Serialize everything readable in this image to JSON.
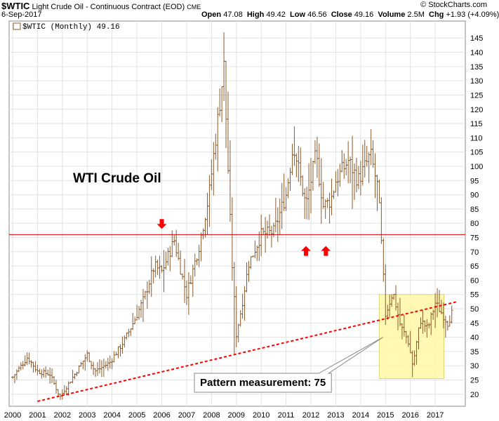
{
  "header": {
    "symbol": "$WTIC",
    "description": "Light Crude Oil - Continuous Contract (EOD)",
    "exchange": "CME",
    "date": "6-Sep-2017",
    "open_label": "Open",
    "open": "47.08",
    "high_label": "High",
    "high": "49.42",
    "low_label": "Low",
    "low": "46.56",
    "close_label": "Close",
    "close": "49.16",
    "volume_label": "Volume",
    "volume": "2.5M",
    "change_label": "Chg",
    "change": "+1.93 (+4.09%)",
    "brand": "© StockCharts.com"
  },
  "colors": {
    "bars": "#8b5a2b",
    "horizontal_line": "#cc0000",
    "trendline": "#ff0000",
    "arrows": "#ff0000",
    "highlight_box": "#fff8a8",
    "highlight_border": "#d8d060"
  },
  "chart_data": {
    "type": "ohlc",
    "frequency": "monthly",
    "legend": "$WTIC (Monthly) 49.16",
    "title": "WTI Crude Oil",
    "x_ticks": [
      "2000",
      "2001",
      "2002",
      "2003",
      "2004",
      "2005",
      "2006",
      "2007",
      "2008",
      "2009",
      "2010",
      "2011",
      "2012",
      "2013",
      "2014",
      "2015",
      "2016",
      "2017"
    ],
    "y_ticks": [
      20,
      25,
      30,
      35,
      40,
      45,
      50,
      55,
      60,
      65,
      70,
      75,
      80,
      85,
      90,
      95,
      100,
      105,
      110,
      115,
      120,
      125,
      130,
      135,
      140,
      145
    ],
    "xlim": [
      2000.0,
      2017.9
    ],
    "ylim": [
      17,
      149
    ],
    "y_axis_side": "right",
    "anchors": [
      [
        2000.0,
        26
      ],
      [
        2000.6,
        33
      ],
      [
        2001.0,
        28
      ],
      [
        2001.5,
        27
      ],
      [
        2001.9,
        19
      ],
      [
        2002.5,
        27
      ],
      [
        2003.0,
        34
      ],
      [
        2003.3,
        28
      ],
      [
        2003.9,
        31
      ],
      [
        2004.5,
        39
      ],
      [
        2004.9,
        46
      ],
      [
        2005.3,
        54
      ],
      [
        2005.7,
        65
      ],
      [
        2006.0,
        63
      ],
      [
        2006.5,
        74
      ],
      [
        2006.8,
        62
      ],
      [
        2007.0,
        55
      ],
      [
        2007.5,
        72
      ],
      [
        2007.9,
        90
      ],
      [
        2008.5,
        135
      ],
      [
        2008.8,
        70
      ],
      [
        2009.0,
        41
      ],
      [
        2009.2,
        50
      ],
      [
        2009.5,
        66
      ],
      [
        2010.0,
        76
      ],
      [
        2010.5,
        77
      ],
      [
        2011.0,
        90
      ],
      [
        2011.3,
        108
      ],
      [
        2011.8,
        86
      ],
      [
        2012.2,
        104
      ],
      [
        2012.5,
        86
      ],
      [
        2012.8,
        88
      ],
      [
        2013.0,
        95
      ],
      [
        2013.5,
        102
      ],
      [
        2013.9,
        95
      ],
      [
        2014.4,
        104
      ],
      [
        2014.7,
        92
      ],
      [
        2014.9,
        63
      ],
      [
        2015.0,
        48
      ],
      [
        2015.3,
        56
      ],
      [
        2015.6,
        44
      ],
      [
        2015.9,
        39
      ],
      [
        2016.1,
        30
      ],
      [
        2016.4,
        46
      ],
      [
        2016.7,
        43
      ],
      [
        2017.0,
        52
      ],
      [
        2017.3,
        48
      ],
      [
        2017.5,
        45
      ],
      [
        2017.7,
        49
      ]
    ],
    "horizontal_line": {
      "y": 76
    },
    "trendline": {
      "points": [
        [
          2001.0,
          17.5
        ],
        [
          2017.9,
          52.5
        ]
      ]
    },
    "arrows": [
      {
        "direction": "down",
        "x": 2006.0,
        "y": 78
      },
      {
        "direction": "up",
        "x": 2011.8,
        "y": 72
      },
      {
        "direction": "up",
        "x": 2012.6,
        "y": 72
      }
    ],
    "highlight_box": {
      "x0": 2014.75,
      "x1": 2017.35,
      "y0": 25.5,
      "y1": 55
    },
    "annotation": {
      "text": "Pattern measurement: 75",
      "point_x": 2014.9,
      "point_y": 40
    }
  }
}
